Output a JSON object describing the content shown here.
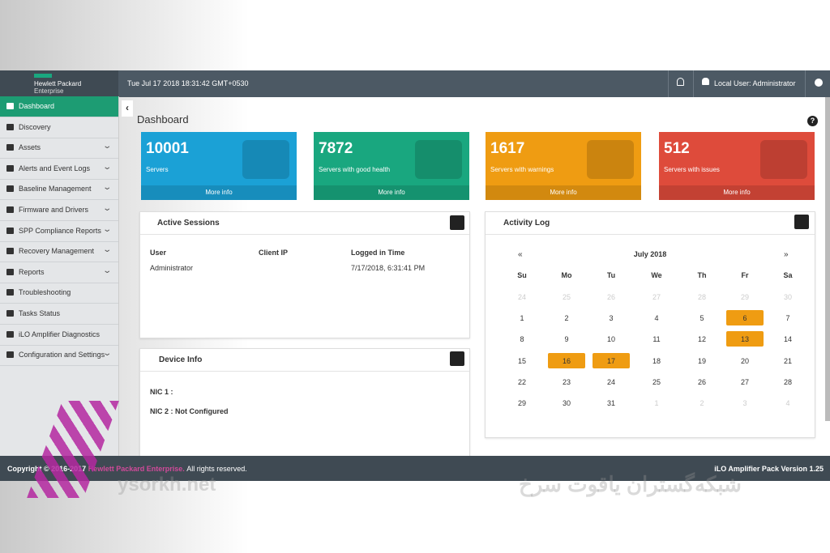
{
  "header": {
    "brand_line1": "Hewlett Packard",
    "brand_line2": "Enterprise",
    "datetime": "Tue Jul 17 2018 18:31:42 GMT+0530",
    "user": "Local User: Administrator"
  },
  "sidebar": {
    "items": [
      {
        "label": "Dashboard",
        "active": true
      },
      {
        "label": "Discovery"
      },
      {
        "label": "Assets",
        "submenu": true
      },
      {
        "label": "Alerts and Event Logs",
        "submenu": true
      },
      {
        "label": "Baseline Management",
        "submenu": true
      },
      {
        "label": "Firmware and Drivers",
        "submenu": true
      },
      {
        "label": "SPP Compliance Reports",
        "submenu": true
      },
      {
        "label": "Recovery Management",
        "submenu": true
      },
      {
        "label": "Reports",
        "submenu": true
      },
      {
        "label": "Troubleshooting"
      },
      {
        "label": "Tasks Status"
      },
      {
        "label": "iLO Amplifier Diagnostics"
      },
      {
        "label": "Configuration and Settings",
        "submenu": true
      }
    ]
  },
  "page_title": "Dashboard",
  "cards": [
    {
      "value": 10001,
      "label": "Servers",
      "link": "More info",
      "color": "#1ba1d6"
    },
    {
      "value": 7872,
      "label": "Servers with good health",
      "link": "More info",
      "color": "#19a77f"
    },
    {
      "value": 1617,
      "label": "Servers with warnings",
      "link": "More info",
      "color": "#ef9c12"
    },
    {
      "value": 512,
      "label": "Servers with issues",
      "link": "More info",
      "color": "#de4b3b"
    }
  ],
  "sessions": {
    "title": "Active Sessions",
    "columns": [
      "User",
      "Client IP",
      "Logged in Time"
    ],
    "row": {
      "user": "Administrator",
      "time": "7/17/2018, 6:31:41 PM"
    }
  },
  "device_info": {
    "title": "Device Info",
    "lines": [
      "NIC 1 :",
      "NIC 2 : Not Configured"
    ]
  },
  "activity": {
    "title": "Activity Log",
    "month": "July 2018",
    "prev": "«",
    "next": "»",
    "weekdays": [
      "Su",
      "Mo",
      "Tu",
      "We",
      "Th",
      "Fr",
      "Sa"
    ],
    "weeks": [
      [
        {
          "day": "24",
          "state": "other"
        },
        {
          "day": "25",
          "state": "other"
        },
        {
          "day": "26",
          "state": "other"
        },
        {
          "day": "27",
          "state": "other"
        },
        {
          "day": "28",
          "state": "other"
        },
        {
          "day": "29",
          "state": "other"
        },
        {
          "day": "30",
          "state": "other"
        }
      ],
      [
        {
          "day": "1"
        },
        {
          "day": "2"
        },
        {
          "day": "3"
        },
        {
          "day": "4"
        },
        {
          "day": "5"
        },
        {
          "day": "6",
          "state": "event"
        },
        {
          "day": "7"
        }
      ],
      [
        {
          "day": "8"
        },
        {
          "day": "9"
        },
        {
          "day": "10"
        },
        {
          "day": "11"
        },
        {
          "day": "12"
        },
        {
          "day": "13",
          "state": "event"
        },
        {
          "day": "14"
        }
      ],
      [
        {
          "day": "15"
        },
        {
          "day": "16",
          "state": "event"
        },
        {
          "day": "17",
          "state": "event"
        },
        {
          "day": "18"
        },
        {
          "day": "19"
        },
        {
          "day": "20"
        },
        {
          "day": "21"
        }
      ],
      [
        {
          "day": "22"
        },
        {
          "day": "23"
        },
        {
          "day": "24"
        },
        {
          "day": "25"
        },
        {
          "day": "26"
        },
        {
          "day": "27"
        },
        {
          "day": "28"
        }
      ],
      [
        {
          "day": "29"
        },
        {
          "day": "30"
        },
        {
          "day": "31"
        },
        {
          "day": "1",
          "state": "other"
        },
        {
          "day": "2",
          "state": "other"
        },
        {
          "day": "3",
          "state": "other"
        },
        {
          "day": "4",
          "state": "other"
        }
      ]
    ]
  },
  "footer": {
    "copyright": "Copyright © 2016-2017",
    "company": "Hewlett Packard Enterprise.",
    "rights": "All rights reserved.",
    "version": "iLO Amplifier Pack Version 1.25"
  },
  "watermark": {
    "site": "ysorkh.net",
    "brand": "شبکه‌گستران یاقوت سرخ"
  }
}
